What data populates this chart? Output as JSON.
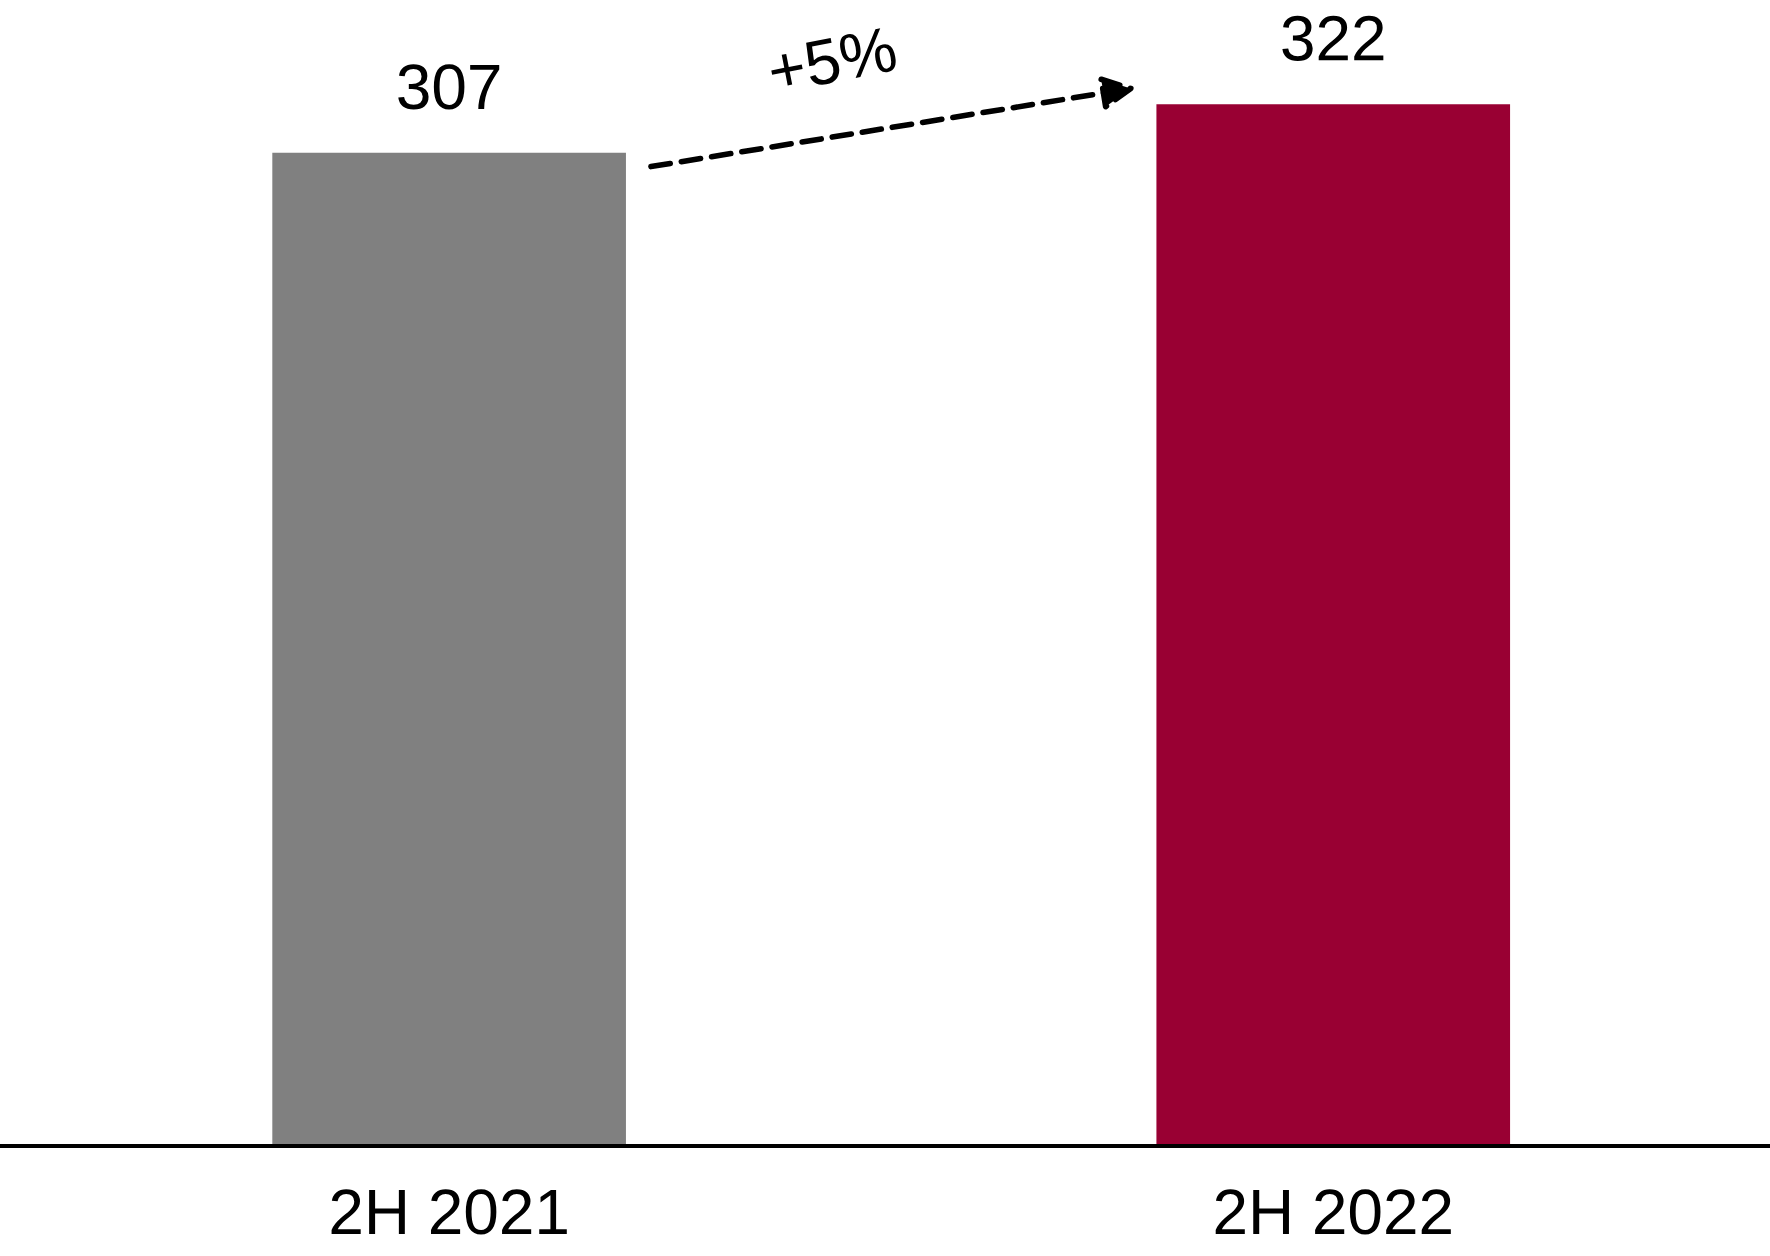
{
  "chart_data": {
    "type": "bar",
    "categories": [
      "2H 2021",
      "2H 2022"
    ],
    "values": [
      307,
      322
    ],
    "colors": [
      "#808080",
      "#990033"
    ],
    "data_labels": true,
    "annotations": [
      "+5%"
    ]
  }
}
